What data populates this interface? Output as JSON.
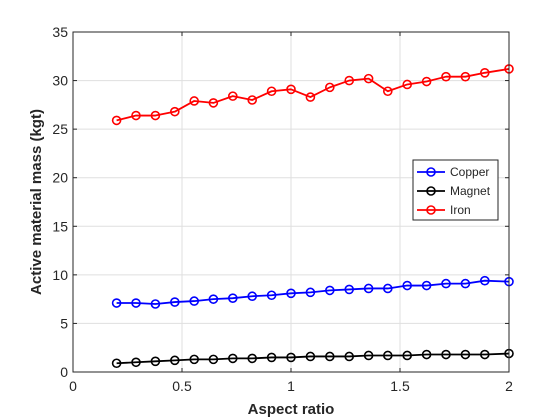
{
  "chart_data": {
    "type": "line",
    "xlabel": "Aspect ratio",
    "ylabel": "Active material mass (kgt)",
    "xlim": [
      0,
      2
    ],
    "ylim": [
      0,
      35
    ],
    "xticks": [
      0,
      0.5,
      1,
      1.5,
      2
    ],
    "xtick_labels": [
      "0",
      "0.5",
      "1",
      "1.5",
      "2"
    ],
    "yticks": [
      0,
      5,
      10,
      15,
      20,
      25,
      30,
      35
    ],
    "ytick_labels": [
      "0",
      "5",
      "10",
      "15",
      "20",
      "25",
      "30",
      "35"
    ],
    "grid": true,
    "legend_position": "right",
    "x": [
      0.2,
      0.289,
      0.378,
      0.467,
      0.556,
      0.644,
      0.733,
      0.822,
      0.911,
      1.0,
      1.089,
      1.178,
      1.267,
      1.356,
      1.444,
      1.533,
      1.622,
      1.711,
      1.8,
      1.889,
      2.0
    ],
    "series": [
      {
        "name": "Copper",
        "color": "#0000ff",
        "values": [
          7.1,
          7.1,
          7.0,
          7.2,
          7.3,
          7.5,
          7.6,
          7.8,
          7.9,
          8.1,
          8.2,
          8.4,
          8.5,
          8.6,
          8.6,
          8.9,
          8.9,
          9.1,
          9.1,
          9.4,
          9.3
        ]
      },
      {
        "name": "Magnet",
        "color": "#000000",
        "values": [
          0.9,
          1.0,
          1.1,
          1.2,
          1.3,
          1.3,
          1.4,
          1.4,
          1.5,
          1.5,
          1.6,
          1.6,
          1.6,
          1.7,
          1.7,
          1.7,
          1.8,
          1.8,
          1.8,
          1.8,
          1.9
        ]
      },
      {
        "name": "Iron",
        "color": "#ff0000",
        "values": [
          25.9,
          26.4,
          26.4,
          26.8,
          27.9,
          27.7,
          28.4,
          28.0,
          28.9,
          29.1,
          28.3,
          29.3,
          30.0,
          30.2,
          28.9,
          29.6,
          29.9,
          30.4,
          30.4,
          30.8,
          31.2
        ]
      }
    ]
  }
}
